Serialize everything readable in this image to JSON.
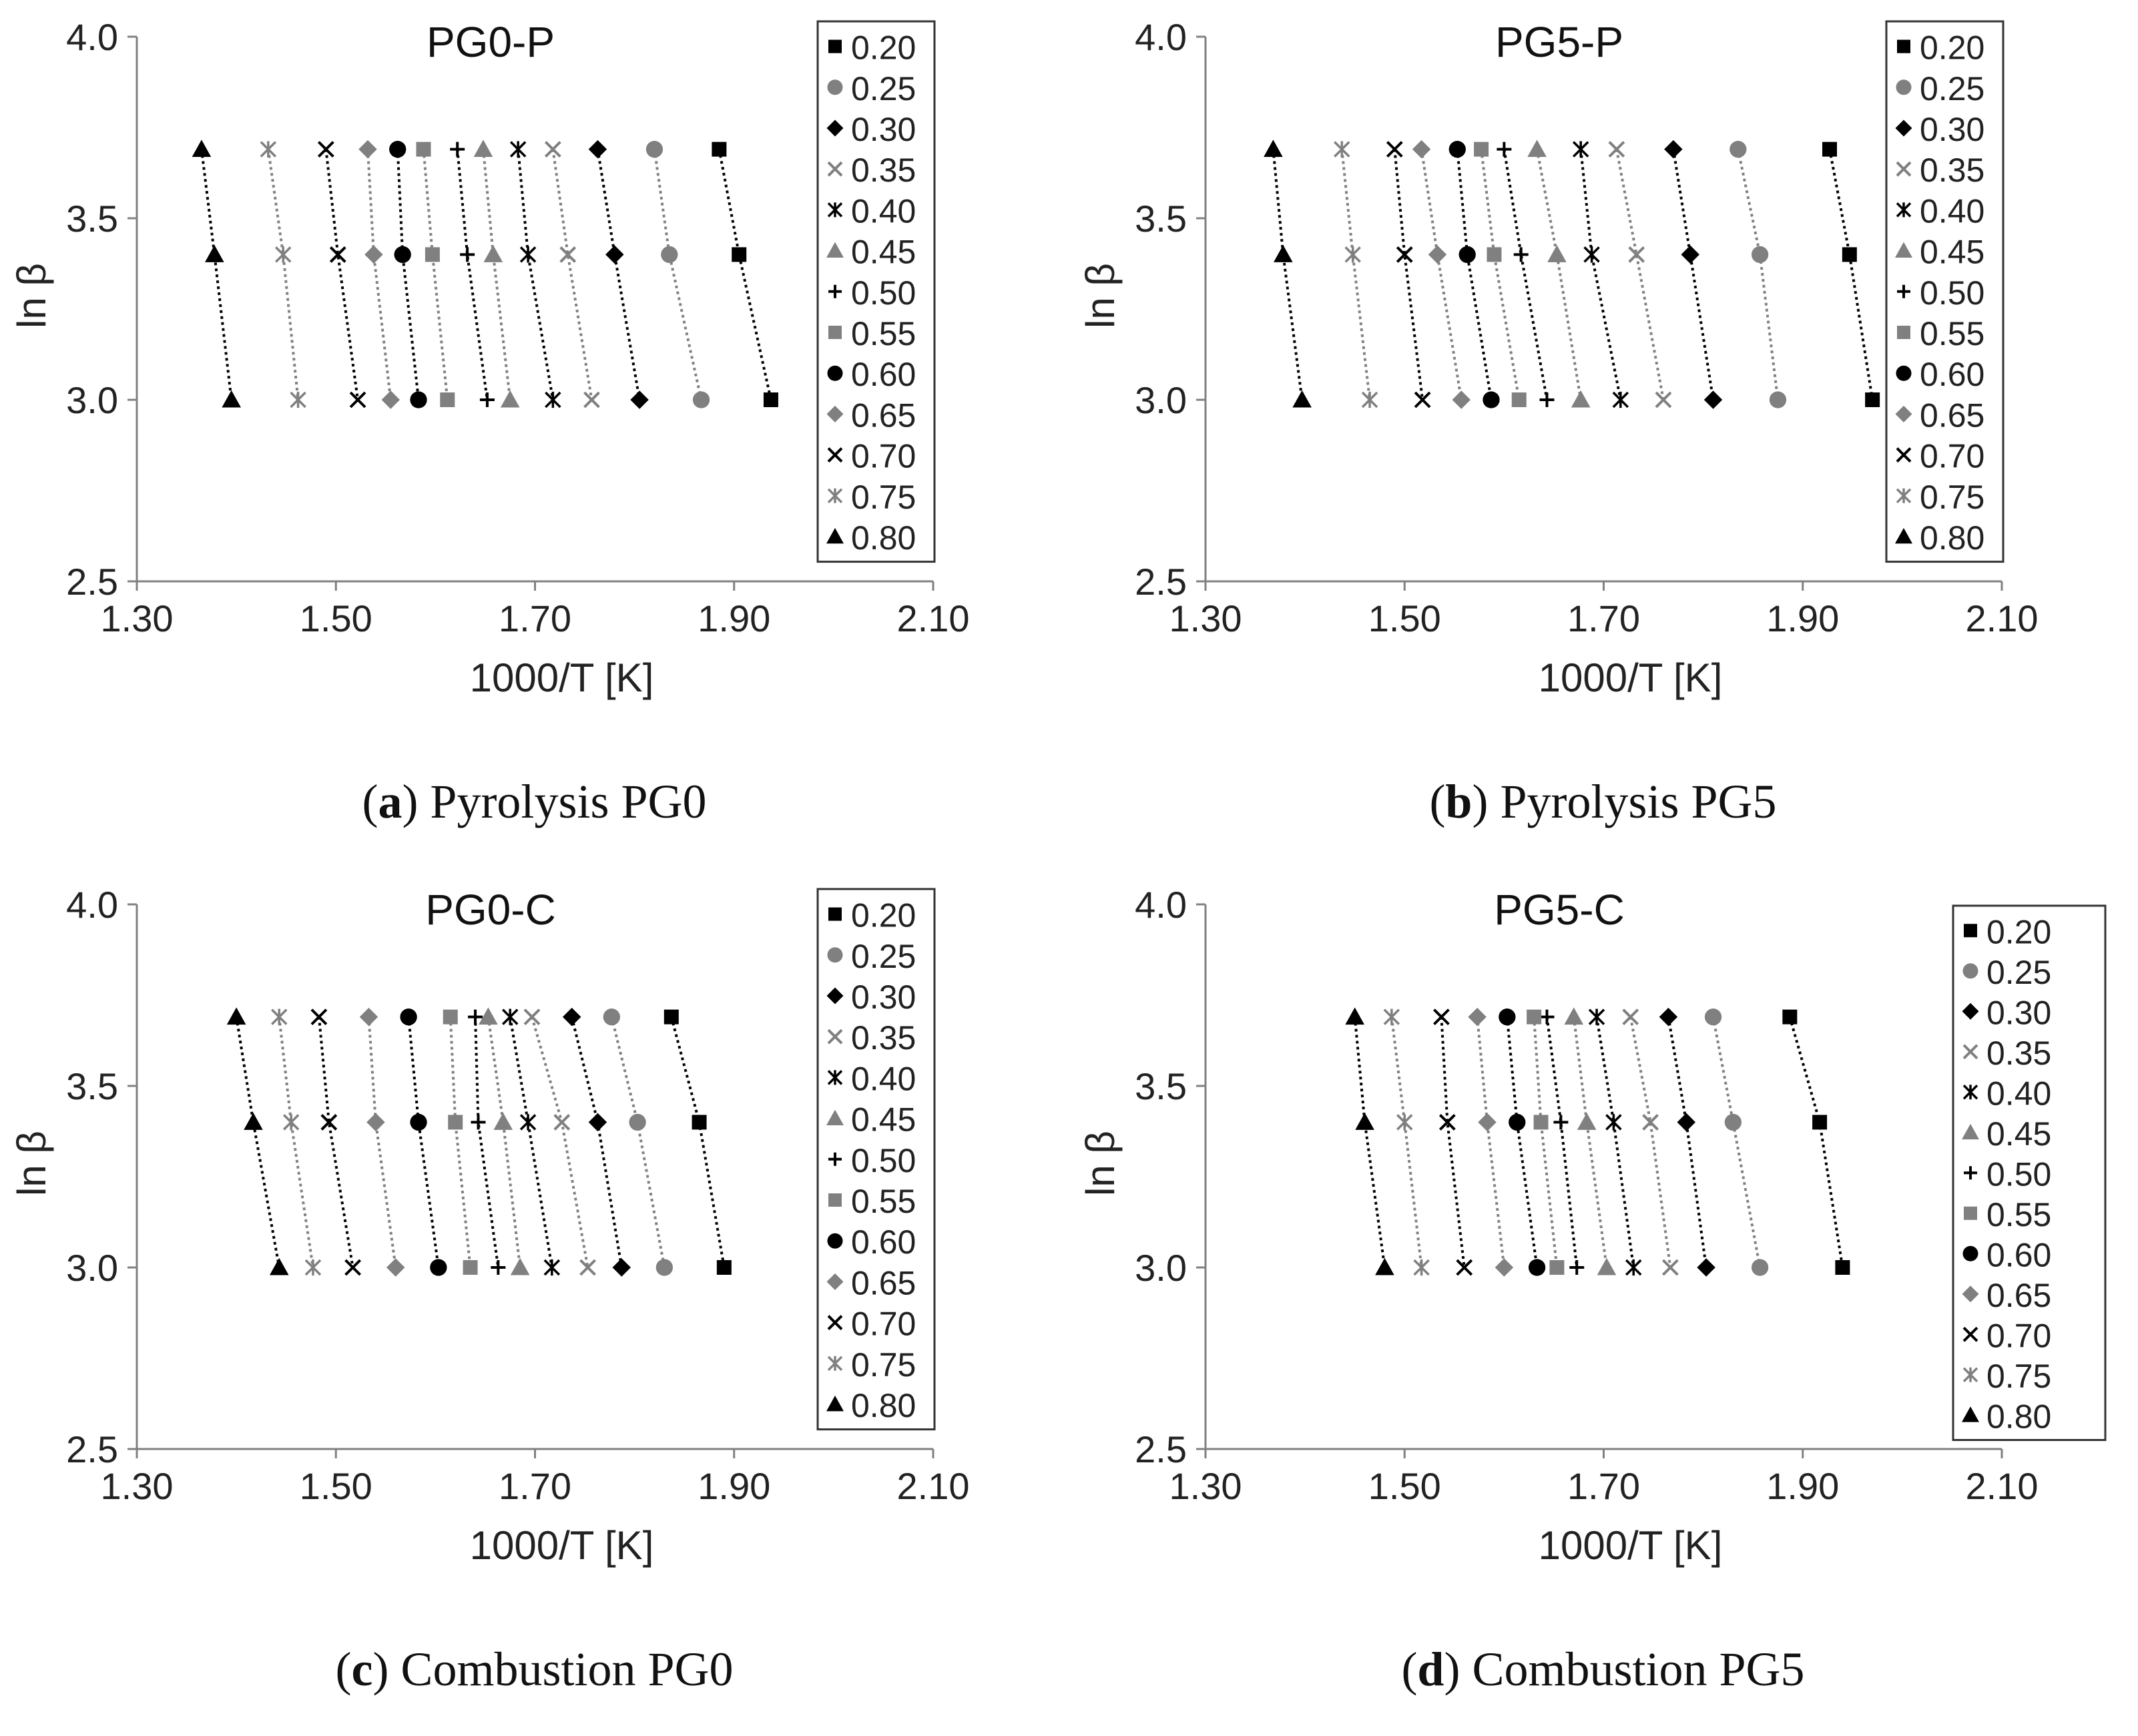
{
  "figure": {
    "captions": [
      {
        "letter": "a",
        "text": ") Pyrolysis PG0"
      },
      {
        "letter": "b",
        "text": ") Pyrolysis PG5"
      },
      {
        "letter": "c",
        "text": ") Combustion PG0"
      },
      {
        "letter": "d",
        "text": ") Combustion PG5"
      }
    ]
  },
  "chart_data": [
    {
      "type": "scatter",
      "title": "PG0-P",
      "xlabel": "1000/T [K]",
      "ylabel": "ln β",
      "xlim": [
        1.3,
        2.1
      ],
      "ylim": [
        2.5,
        4.0
      ],
      "xticks": [
        "1.30",
        "1.50",
        "1.70",
        "1.90",
        "2.10"
      ],
      "yticks": [
        "2.5",
        "3.0",
        "3.5",
        "4.0"
      ],
      "y_levels": [
        3.69,
        3.4,
        3.0
      ],
      "series": [
        {
          "name": "0.20",
          "marker": "square",
          "color": "#000000",
          "x": [
            1.885,
            1.905,
            1.937
          ]
        },
        {
          "name": "0.25",
          "marker": "circle",
          "color": "#808080",
          "x": [
            1.82,
            1.835,
            1.867
          ]
        },
        {
          "name": "0.30",
          "marker": "diamond",
          "color": "#000000",
          "x": [
            1.763,
            1.78,
            1.805
          ]
        },
        {
          "name": "0.35",
          "marker": "x",
          "color": "#808080",
          "x": [
            1.718,
            1.733,
            1.757
          ]
        },
        {
          "name": "0.40",
          "marker": "star",
          "color": "#000000",
          "x": [
            1.683,
            1.693,
            1.718
          ]
        },
        {
          "name": "0.45",
          "marker": "triangle",
          "color": "#808080",
          "x": [
            1.648,
            1.658,
            1.675
          ]
        },
        {
          "name": "0.50",
          "marker": "plus",
          "color": "#000000",
          "x": [
            1.622,
            1.632,
            1.652
          ]
        },
        {
          "name": "0.55",
          "marker": "square",
          "color": "#808080",
          "x": [
            1.588,
            1.597,
            1.612
          ]
        },
        {
          "name": "0.60",
          "marker": "circle",
          "color": "#000000",
          "x": [
            1.562,
            1.567,
            1.583
          ]
        },
        {
          "name": "0.65",
          "marker": "diamond",
          "color": "#808080",
          "x": [
            1.532,
            1.538,
            1.555
          ]
        },
        {
          "name": "0.70",
          "marker": "x",
          "color": "#000000",
          "x": [
            1.49,
            1.502,
            1.522
          ]
        },
        {
          "name": "0.75",
          "marker": "star",
          "color": "#808080",
          "x": [
            1.432,
            1.447,
            1.462
          ]
        },
        {
          "name": "0.80",
          "marker": "triangle",
          "color": "#000000",
          "x": [
            1.365,
            1.378,
            1.395
          ]
        }
      ]
    },
    {
      "type": "scatter",
      "title": "PG5-P",
      "xlabel": "1000/T [K]",
      "ylabel": "ln β",
      "xlim": [
        1.3,
        2.1
      ],
      "ylim": [
        2.5,
        4.0
      ],
      "xticks": [
        "1.30",
        "1.50",
        "1.70",
        "1.90",
        "2.10"
      ],
      "yticks": [
        "2.5",
        "3.0",
        "3.5",
        "4.0"
      ],
      "y_levels": [
        3.69,
        3.4,
        3.0
      ],
      "series": [
        {
          "name": "0.20",
          "marker": "square",
          "color": "#000000",
          "x": [
            1.927,
            1.947,
            1.97
          ]
        },
        {
          "name": "0.25",
          "marker": "circle",
          "color": "#808080",
          "x": [
            1.835,
            1.857,
            1.875
          ]
        },
        {
          "name": "0.30",
          "marker": "diamond",
          "color": "#000000",
          "x": [
            1.77,
            1.787,
            1.81
          ]
        },
        {
          "name": "0.35",
          "marker": "x",
          "color": "#808080",
          "x": [
            1.713,
            1.733,
            1.76
          ]
        },
        {
          "name": "0.40",
          "marker": "star",
          "color": "#000000",
          "x": [
            1.677,
            1.688,
            1.717
          ]
        },
        {
          "name": "0.45",
          "marker": "triangle",
          "color": "#808080",
          "x": [
            1.633,
            1.653,
            1.677
          ]
        },
        {
          "name": "0.50",
          "marker": "plus",
          "color": "#000000",
          "x": [
            1.6,
            1.617,
            1.643
          ]
        },
        {
          "name": "0.55",
          "marker": "square",
          "color": "#808080",
          "x": [
            1.577,
            1.59,
            1.615
          ]
        },
        {
          "name": "0.60",
          "marker": "circle",
          "color": "#000000",
          "x": [
            1.553,
            1.563,
            1.587
          ]
        },
        {
          "name": "0.65",
          "marker": "diamond",
          "color": "#808080",
          "x": [
            1.517,
            1.533,
            1.557
          ]
        },
        {
          "name": "0.70",
          "marker": "x",
          "color": "#000000",
          "x": [
            1.49,
            1.5,
            1.518
          ]
        },
        {
          "name": "0.75",
          "marker": "star",
          "color": "#808080",
          "x": [
            1.437,
            1.448,
            1.465
          ]
        },
        {
          "name": "0.80",
          "marker": "triangle",
          "color": "#000000",
          "x": [
            1.368,
            1.378,
            1.397
          ]
        }
      ]
    },
    {
      "type": "scatter",
      "title": "PG0-C",
      "xlabel": "1000/T [K]",
      "ylabel": "ln β",
      "xlim": [
        1.3,
        2.1
      ],
      "ylim": [
        2.5,
        4.0
      ],
      "xticks": [
        "1.30",
        "1.50",
        "1.70",
        "1.90",
        "2.10"
      ],
      "yticks": [
        "2.5",
        "3.0",
        "3.5",
        "4.0"
      ],
      "y_levels": [
        3.69,
        3.4,
        3.0
      ],
      "series": [
        {
          "name": "0.20",
          "marker": "square",
          "color": "#000000",
          "x": [
            1.837,
            1.865,
            1.89
          ]
        },
        {
          "name": "0.25",
          "marker": "circle",
          "color": "#808080",
          "x": [
            1.777,
            1.803,
            1.83
          ]
        },
        {
          "name": "0.30",
          "marker": "diamond",
          "color": "#000000",
          "x": [
            1.737,
            1.763,
            1.787
          ]
        },
        {
          "name": "0.35",
          "marker": "x",
          "color": "#808080",
          "x": [
            1.697,
            1.727,
            1.753
          ]
        },
        {
          "name": "0.40",
          "marker": "star",
          "color": "#000000",
          "x": [
            1.675,
            1.693,
            1.717
          ]
        },
        {
          "name": "0.45",
          "marker": "triangle",
          "color": "#808080",
          "x": [
            1.653,
            1.668,
            1.685
          ]
        },
        {
          "name": "0.50",
          "marker": "plus",
          "color": "#000000",
          "x": [
            1.64,
            1.643,
            1.663
          ]
        },
        {
          "name": "0.55",
          "marker": "square",
          "color": "#808080",
          "x": [
            1.615,
            1.62,
            1.635
          ]
        },
        {
          "name": "0.60",
          "marker": "circle",
          "color": "#000000",
          "x": [
            1.573,
            1.583,
            1.603
          ]
        },
        {
          "name": "0.65",
          "marker": "diamond",
          "color": "#808080",
          "x": [
            1.533,
            1.54,
            1.56
          ]
        },
        {
          "name": "0.70",
          "marker": "x",
          "color": "#000000",
          "x": [
            1.483,
            1.493,
            1.517
          ]
        },
        {
          "name": "0.75",
          "marker": "star",
          "color": "#808080",
          "x": [
            1.443,
            1.455,
            1.477
          ]
        },
        {
          "name": "0.80",
          "marker": "triangle",
          "color": "#000000",
          "x": [
            1.4,
            1.417,
            1.443
          ]
        }
      ]
    },
    {
      "type": "scatter",
      "title": "PG5-C",
      "xlabel": "1000/T [K]",
      "ylabel": "ln β",
      "xlim": [
        1.3,
        2.1
      ],
      "ylim": [
        2.5,
        4.0
      ],
      "xticks": [
        "1.30",
        "1.50",
        "1.70",
        "1.90",
        "2.10"
      ],
      "yticks": [
        "2.5",
        "3.0",
        "3.5",
        "4.0"
      ],
      "y_levels": [
        3.69,
        3.4,
        3.0
      ],
      "series": [
        {
          "name": "0.20",
          "marker": "square",
          "color": "#000000",
          "x": [
            1.887,
            1.917,
            1.94
          ]
        },
        {
          "name": "0.25",
          "marker": "circle",
          "color": "#808080",
          "x": [
            1.81,
            1.83,
            1.857
          ]
        },
        {
          "name": "0.30",
          "marker": "diamond",
          "color": "#000000",
          "x": [
            1.765,
            1.783,
            1.803
          ]
        },
        {
          "name": "0.35",
          "marker": "x",
          "color": "#808080",
          "x": [
            1.727,
            1.747,
            1.767
          ]
        },
        {
          "name": "0.40",
          "marker": "star",
          "color": "#000000",
          "x": [
            1.693,
            1.71,
            1.73
          ]
        },
        {
          "name": "0.45",
          "marker": "triangle",
          "color": "#808080",
          "x": [
            1.67,
            1.683,
            1.703
          ]
        },
        {
          "name": "0.50",
          "marker": "plus",
          "color": "#000000",
          "x": [
            1.643,
            1.657,
            1.673
          ]
        },
        {
          "name": "0.55",
          "marker": "square",
          "color": "#808080",
          "x": [
            1.63,
            1.637,
            1.653
          ]
        },
        {
          "name": "0.60",
          "marker": "circle",
          "color": "#000000",
          "x": [
            1.603,
            1.613,
            1.633
          ]
        },
        {
          "name": "0.65",
          "marker": "diamond",
          "color": "#808080",
          "x": [
            1.573,
            1.583,
            1.6
          ]
        },
        {
          "name": "0.70",
          "marker": "x",
          "color": "#000000",
          "x": [
            1.537,
            1.543,
            1.56
          ]
        },
        {
          "name": "0.75",
          "marker": "star",
          "color": "#808080",
          "x": [
            1.487,
            1.5,
            1.517
          ]
        },
        {
          "name": "0.80",
          "marker": "triangle",
          "color": "#000000",
          "x": [
            1.45,
            1.46,
            1.48
          ]
        }
      ]
    }
  ]
}
